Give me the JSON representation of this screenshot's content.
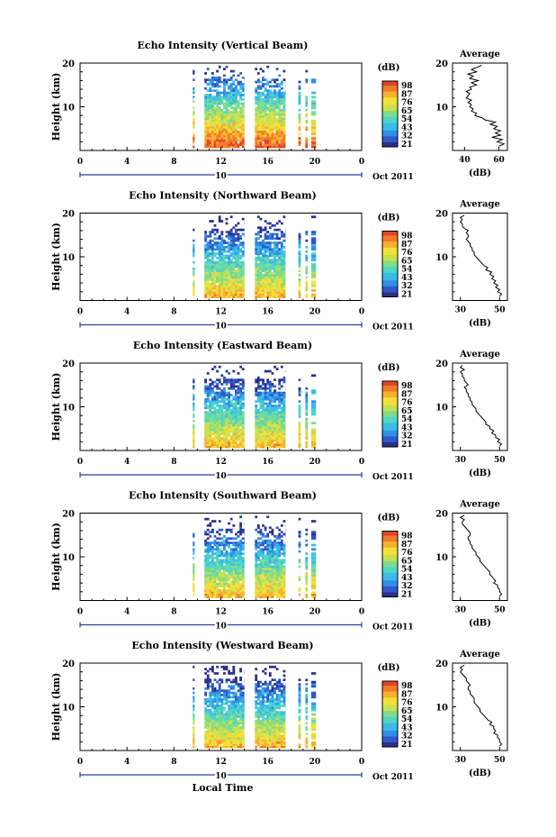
{
  "chart_data": [
    {
      "type": "heatmap",
      "title": "Echo Intensity (Vertical Beam)",
      "ylabel": "Height (km)",
      "ylim": [
        0,
        20
      ],
      "yticks": [
        "20",
        "10"
      ],
      "xlim": [
        0,
        24
      ],
      "xticks": [
        "0",
        "4",
        "8",
        "12",
        "16",
        "20",
        "0"
      ],
      "date_marker": "10",
      "date_label": "Oct 2011",
      "colorbar": {
        "unit": "(dB)",
        "ticks": [
          "98",
          "87",
          "76",
          "65",
          "54",
          "43",
          "32",
          "21"
        ]
      },
      "data_segments_hours": [
        [
          9.6,
          9.75
        ],
        [
          10.6,
          14.0
        ],
        [
          14.9,
          17.5
        ],
        [
          18.6,
          18.8
        ],
        [
          19.2,
          19.4
        ],
        [
          19.7,
          20.1
        ]
      ],
      "profile": {
        "title": "Average",
        "xlabel": "(dB)",
        "xticks": [
          "40",
          "60"
        ],
        "xlim": [
          33,
          65
        ],
        "yticks": [
          "20",
          "10"
        ],
        "ylim": [
          0,
          20
        ],
        "points": [
          [
            50,
            19.5
          ],
          [
            47,
            19
          ],
          [
            44,
            18.5
          ],
          [
            47,
            18
          ],
          [
            42,
            17.5
          ],
          [
            45,
            17
          ],
          [
            43,
            16.5
          ],
          [
            48,
            16
          ],
          [
            44,
            15.5
          ],
          [
            47,
            15
          ],
          [
            43,
            14.5
          ],
          [
            44,
            14
          ],
          [
            41,
            13.5
          ],
          [
            43,
            13
          ],
          [
            42,
            12.5
          ],
          [
            41,
            12
          ],
          [
            44,
            11.5
          ],
          [
            42,
            11
          ],
          [
            44,
            10.5
          ],
          [
            43,
            10
          ],
          [
            45,
            9.5
          ],
          [
            44,
            9
          ],
          [
            47,
            8.5
          ],
          [
            46,
            8
          ],
          [
            50,
            7.5
          ],
          [
            52,
            7
          ],
          [
            58,
            6.5
          ],
          [
            55,
            6
          ],
          [
            59,
            5.5
          ],
          [
            57,
            5
          ],
          [
            61,
            4.5
          ],
          [
            58,
            4
          ],
          [
            61,
            3.5
          ],
          [
            56,
            3
          ],
          [
            62,
            2.5
          ],
          [
            59,
            2
          ],
          [
            63,
            1.5
          ],
          [
            60,
            1
          ]
        ]
      }
    },
    {
      "type": "heatmap",
      "title": "Echo Intensity (Northward Beam)",
      "ylabel": "Height (km)",
      "ylim": [
        0,
        20
      ],
      "yticks": [
        "20",
        "10"
      ],
      "xlim": [
        0,
        24
      ],
      "xticks": [
        "0",
        "4",
        "8",
        "12",
        "16",
        "20",
        "0"
      ],
      "date_marker": "10",
      "date_label": "Oct 2011",
      "colorbar": {
        "unit": "(dB)",
        "ticks": [
          "98",
          "87",
          "76",
          "65",
          "54",
          "43",
          "32",
          "21"
        ]
      },
      "data_segments_hours": [
        [
          9.6,
          9.75
        ],
        [
          10.6,
          14.0
        ],
        [
          14.9,
          17.5
        ],
        [
          18.6,
          18.8
        ],
        [
          19.2,
          19.4
        ],
        [
          19.7,
          20.1
        ]
      ],
      "profile": {
        "title": "Average",
        "xlabel": "(dB)",
        "xticks": [
          "30",
          "50"
        ],
        "xlim": [
          26,
          54
        ],
        "yticks": [
          "20",
          "10"
        ],
        "ylim": [
          0,
          20
        ],
        "points": [
          [
            32,
            19.5
          ],
          [
            30,
            19
          ],
          [
            31,
            18.5
          ],
          [
            30,
            18
          ],
          [
            31,
            17.5
          ],
          [
            31,
            17
          ],
          [
            32,
            16.5
          ],
          [
            34,
            16
          ],
          [
            33,
            15.5
          ],
          [
            34,
            15
          ],
          [
            34,
            14.5
          ],
          [
            33,
            14
          ],
          [
            34,
            13.5
          ],
          [
            35,
            13
          ],
          [
            35,
            12.5
          ],
          [
            36,
            12
          ],
          [
            36,
            11.5
          ],
          [
            37,
            11
          ],
          [
            37,
            10.5
          ],
          [
            38,
            10
          ],
          [
            39,
            9.5
          ],
          [
            40,
            9
          ],
          [
            41,
            8.5
          ],
          [
            42,
            8
          ],
          [
            44,
            7.5
          ],
          [
            43,
            7
          ],
          [
            46,
            6.5
          ],
          [
            45,
            6
          ],
          [
            47,
            5.5
          ],
          [
            46,
            5
          ],
          [
            48,
            4.5
          ],
          [
            47,
            4
          ],
          [
            49,
            3.5
          ],
          [
            48,
            3
          ],
          [
            50,
            2.5
          ],
          [
            49,
            2
          ],
          [
            51,
            1.5
          ],
          [
            50,
            1
          ]
        ]
      }
    },
    {
      "type": "heatmap",
      "title": "Echo Intensity (Eastward Beam)",
      "ylabel": "Height (km)",
      "ylim": [
        0,
        20
      ],
      "yticks": [
        "20",
        "10"
      ],
      "xlim": [
        0,
        24
      ],
      "xticks": [
        "0",
        "4",
        "8",
        "12",
        "16",
        "20",
        "0"
      ],
      "date_marker": "10",
      "date_label": "Oct 2011",
      "colorbar": {
        "unit": "(dB)",
        "ticks": [
          "98",
          "87",
          "76",
          "65",
          "54",
          "43",
          "32",
          "21"
        ]
      },
      "data_segments_hours": [
        [
          9.6,
          9.75
        ],
        [
          10.6,
          14.0
        ],
        [
          14.9,
          17.5
        ],
        [
          18.6,
          18.8
        ],
        [
          19.2,
          19.4
        ],
        [
          19.7,
          20.1
        ]
      ],
      "profile": {
        "title": "Average",
        "xlabel": "(dB)",
        "xticks": [
          "30",
          "50"
        ],
        "xlim": [
          26,
          54
        ],
        "yticks": [
          "20",
          "10"
        ],
        "ylim": [
          0,
          20
        ],
        "points": [
          [
            31,
            19.5
          ],
          [
            30,
            19
          ],
          [
            32,
            18.5
          ],
          [
            30,
            18
          ],
          [
            31,
            17.5
          ],
          [
            31,
            17
          ],
          [
            32,
            16.5
          ],
          [
            32,
            16
          ],
          [
            33,
            15.5
          ],
          [
            34,
            15
          ],
          [
            32,
            14.5
          ],
          [
            33,
            14
          ],
          [
            33,
            13.5
          ],
          [
            34,
            13
          ],
          [
            34,
            12.5
          ],
          [
            35,
            12
          ],
          [
            35,
            11.5
          ],
          [
            36,
            11
          ],
          [
            36,
            10.5
          ],
          [
            37,
            10
          ],
          [
            38,
            9.5
          ],
          [
            38,
            9
          ],
          [
            39,
            8.5
          ],
          [
            40,
            8
          ],
          [
            41,
            7.5
          ],
          [
            42,
            7
          ],
          [
            43,
            6.5
          ],
          [
            43,
            6
          ],
          [
            45,
            5.5
          ],
          [
            45,
            5
          ],
          [
            47,
            4.5
          ],
          [
            46,
            4
          ],
          [
            48,
            3.5
          ],
          [
            48,
            3
          ],
          [
            50,
            2.5
          ],
          [
            49,
            2
          ],
          [
            51,
            1.5
          ],
          [
            50,
            1
          ]
        ]
      }
    },
    {
      "type": "heatmap",
      "title": "Echo Intensity (Southward Beam)",
      "ylabel": "Height (km)",
      "ylim": [
        0,
        20
      ],
      "yticks": [
        "20",
        "10"
      ],
      "xlim": [
        0,
        24
      ],
      "xticks": [
        "0",
        "4",
        "8",
        "12",
        "16",
        "20",
        "0"
      ],
      "date_marker": "10",
      "date_label": "Oct 2011",
      "colorbar": {
        "unit": "(dB)",
        "ticks": [
          "98",
          "87",
          "76",
          "65",
          "54",
          "43",
          "32",
          "21"
        ]
      },
      "data_segments_hours": [
        [
          9.6,
          9.75
        ],
        [
          10.6,
          14.0
        ],
        [
          14.9,
          17.5
        ],
        [
          18.6,
          18.8
        ],
        [
          19.2,
          19.4
        ],
        [
          19.7,
          20.1
        ]
      ],
      "profile": {
        "title": "Average",
        "xlabel": "(dB)",
        "xticks": [
          "30",
          "50"
        ],
        "xlim": [
          26,
          54
        ],
        "yticks": [
          "20",
          "10"
        ],
        "ylim": [
          0,
          20
        ],
        "points": [
          [
            32,
            19.5
          ],
          [
            30,
            19
          ],
          [
            32,
            18.5
          ],
          [
            31,
            18
          ],
          [
            31,
            17.5
          ],
          [
            32,
            17
          ],
          [
            33,
            16.5
          ],
          [
            34,
            16
          ],
          [
            35,
            15.5
          ],
          [
            35,
            15
          ],
          [
            34,
            14.5
          ],
          [
            34,
            14
          ],
          [
            35,
            13.5
          ],
          [
            35,
            13
          ],
          [
            36,
            12.5
          ],
          [
            36,
            12
          ],
          [
            37,
            11.5
          ],
          [
            38,
            11
          ],
          [
            38,
            10.5
          ],
          [
            39,
            10
          ],
          [
            40,
            9.5
          ],
          [
            40,
            9
          ],
          [
            41,
            8.5
          ],
          [
            42,
            8
          ],
          [
            43,
            7.5
          ],
          [
            44,
            7
          ],
          [
            45,
            6.5
          ],
          [
            45,
            6
          ],
          [
            46,
            5.5
          ],
          [
            47,
            5
          ],
          [
            48,
            4.5
          ],
          [
            47,
            4
          ],
          [
            49,
            3.5
          ],
          [
            49,
            3
          ],
          [
            50,
            2.5
          ],
          [
            50,
            2
          ],
          [
            51,
            1.5
          ],
          [
            50,
            1
          ]
        ]
      }
    },
    {
      "type": "heatmap",
      "title": "Echo Intensity (Westward Beam)",
      "ylabel": "Height (km)",
      "xlabel": "Local Time",
      "ylim": [
        0,
        20
      ],
      "yticks": [
        "20",
        "10"
      ],
      "xlim": [
        0,
        24
      ],
      "xticks": [
        "0",
        "4",
        "8",
        "12",
        "16",
        "20",
        "0"
      ],
      "date_marker": "10",
      "date_label": "Oct 2011",
      "colorbar": {
        "unit": "(dB)",
        "ticks": [
          "98",
          "87",
          "76",
          "65",
          "54",
          "43",
          "32",
          "21"
        ]
      },
      "data_segments_hours": [
        [
          9.6,
          9.75
        ],
        [
          10.6,
          14.0
        ],
        [
          14.9,
          17.5
        ],
        [
          18.6,
          18.8
        ],
        [
          19.2,
          19.4
        ],
        [
          19.7,
          20.1
        ]
      ],
      "profile": {
        "title": "Average",
        "xlabel": "(dB)",
        "xticks": [
          "30",
          "50"
        ],
        "xlim": [
          26,
          54
        ],
        "yticks": [
          "20",
          "10"
        ],
        "ylim": [
          0,
          20
        ],
        "points": [
          [
            32,
            19.5
          ],
          [
            30,
            19
          ],
          [
            31,
            18.5
          ],
          [
            30,
            18
          ],
          [
            31,
            17.5
          ],
          [
            32,
            17
          ],
          [
            33,
            16.5
          ],
          [
            33,
            16
          ],
          [
            34,
            15.5
          ],
          [
            35,
            15
          ],
          [
            34,
            14.5
          ],
          [
            34,
            14
          ],
          [
            35,
            13.5
          ],
          [
            35,
            13
          ],
          [
            36,
            12.5
          ],
          [
            37,
            12
          ],
          [
            37,
            11.5
          ],
          [
            37,
            11
          ],
          [
            38,
            10.5
          ],
          [
            39,
            10
          ],
          [
            40,
            9.5
          ],
          [
            40,
            9
          ],
          [
            41,
            8.5
          ],
          [
            42,
            8
          ],
          [
            43,
            7.5
          ],
          [
            44,
            7
          ],
          [
            46,
            6.5
          ],
          [
            45,
            6
          ],
          [
            47,
            5.5
          ],
          [
            47,
            5
          ],
          [
            48,
            4.5
          ],
          [
            47,
            4
          ],
          [
            49,
            3.5
          ],
          [
            49,
            3
          ],
          [
            50,
            2.5
          ],
          [
            50,
            2
          ],
          [
            51,
            1.5
          ],
          [
            50,
            1
          ]
        ]
      }
    }
  ],
  "colors": {
    "scale": [
      "#2b2f8c",
      "#2f58c8",
      "#2f8fe6",
      "#3bbbe8",
      "#4fd6c4",
      "#7fdc8a",
      "#c8e04e",
      "#f2e03a",
      "#f7b030",
      "#f27a2a",
      "#e0442a"
    ],
    "axis_blue": "#2a3fa0"
  }
}
